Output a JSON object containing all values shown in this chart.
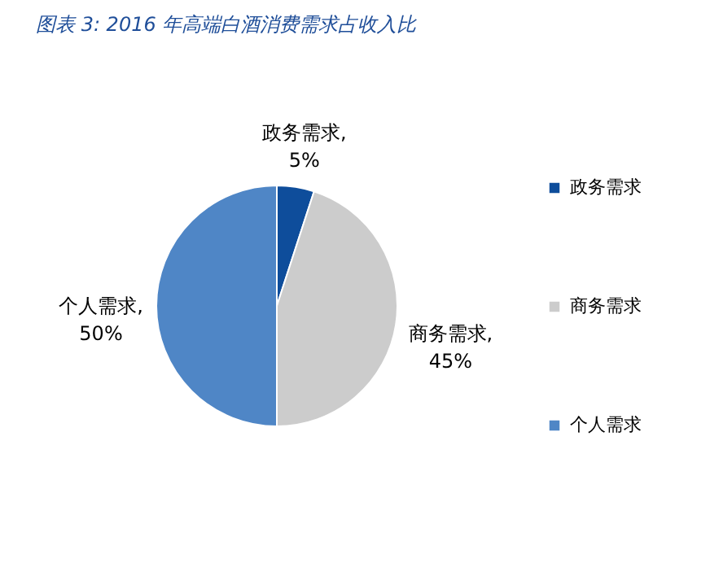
{
  "chart_data": {
    "type": "pie",
    "title": "图表 3:  2016 年高端白酒消费需求占收入比",
    "categories": [
      "政务需求",
      "商务需求",
      "个人需求"
    ],
    "values": [
      5,
      45,
      50
    ],
    "colors": [
      "#0e4d9b",
      "#cccccc",
      "#4f86c6"
    ],
    "value_labels": [
      "政务需求,\n5%",
      "商务需求,\n45%",
      "个人需求,\n50%"
    ],
    "data_labels": true,
    "legend": "right"
  }
}
